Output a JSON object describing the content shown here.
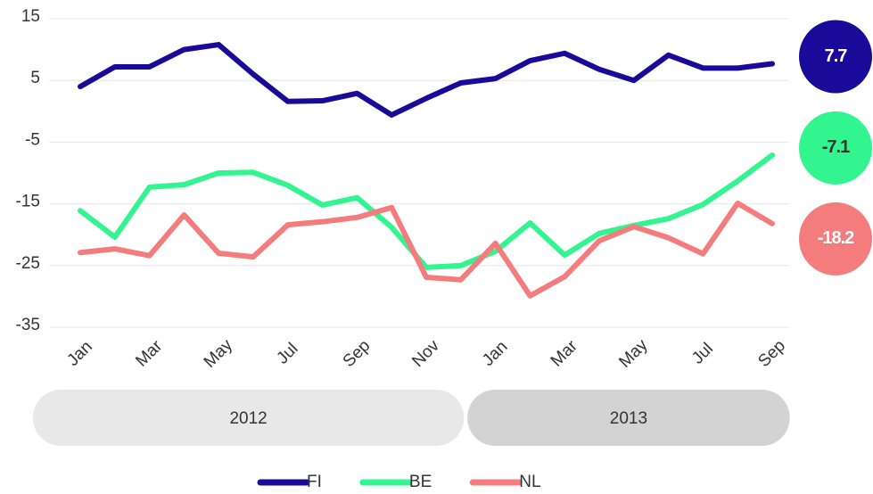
{
  "chart_data": {
    "type": "line",
    "categories": [
      "Jan",
      null,
      "Mar",
      null,
      "May",
      null,
      "Jul",
      null,
      "Sep",
      null,
      "Nov",
      null,
      "Jan",
      null,
      "Mar",
      null,
      "May",
      null,
      "Jul",
      null,
      "Sep"
    ],
    "groups": [
      {
        "label": "2012",
        "size": 12
      },
      {
        "label": "2013",
        "size": 9
      }
    ],
    "series": [
      {
        "name": "FI",
        "color": "#1a0a99",
        "values": [
          4.0,
          7.2,
          7.2,
          10.0,
          10.8,
          6.0,
          1.6,
          1.7,
          2.9,
          -0.6,
          2.1,
          4.6,
          5.3,
          8.2,
          9.4,
          6.8,
          5.0,
          9.1,
          7.0,
          7.0,
          7.7
        ]
      },
      {
        "name": "BE",
        "color": "#33f58f",
        "values": [
          -16.1,
          -20.4,
          -12.3,
          -11.9,
          -10.0,
          -9.9,
          -12.0,
          -15.2,
          -14.0,
          -18.8,
          -25.3,
          -25.0,
          -22.7,
          -18.1,
          -23.3,
          -19.8,
          -18.5,
          -17.4,
          -15.1,
          -11.3,
          -7.1
        ]
      },
      {
        "name": "NL",
        "color": "#f47c7c",
        "values": [
          -22.9,
          -22.3,
          -23.4,
          -16.8,
          -23.0,
          -23.6,
          -18.4,
          -17.9,
          -17.2,
          -15.6,
          -26.9,
          -27.3,
          -21.4,
          -29.9,
          -26.8,
          -21.0,
          -18.7,
          -20.5,
          -23.1,
          -14.9,
          -18.2
        ]
      }
    ],
    "ylim": [
      -35,
      15
    ],
    "yticks": [
      15,
      5,
      -5,
      -15,
      -25,
      -35
    ],
    "grid": true
  }
}
